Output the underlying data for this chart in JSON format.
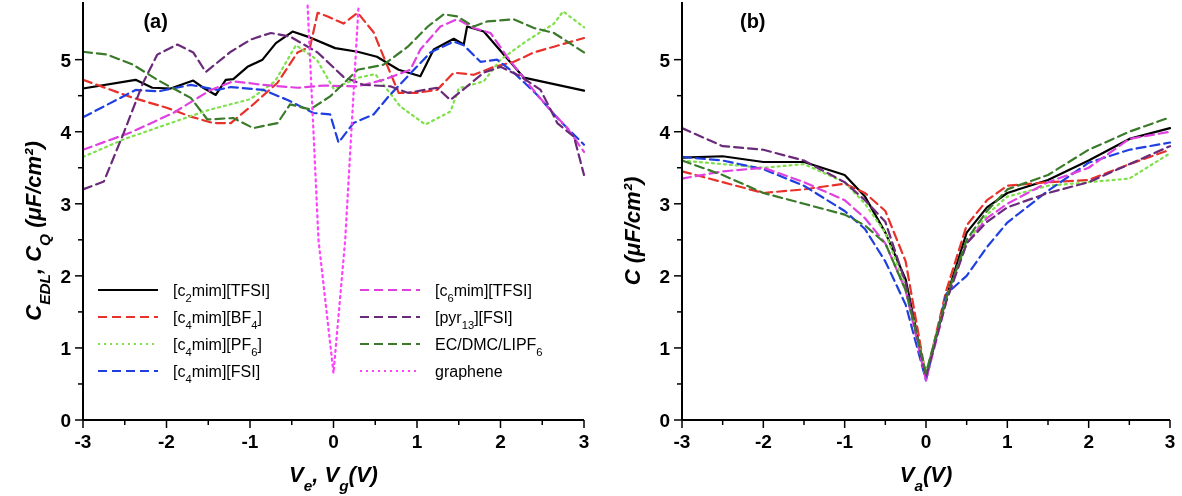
{
  "chart_data": [
    {
      "type": "line",
      "title": "(a)",
      "xlabel": "V$_{e}$, V$_{g}$(V)",
      "ylabel": "C$_{EDL}$, C$_{Q}$ (μF/cm²)",
      "xlim": [
        -3,
        3
      ],
      "ylim": [
        0,
        5.8
      ],
      "xticks": [
        -3,
        {
          "value": -2.5,
          "label": null
        },
        -2,
        {
          "value": -1.5,
          "label": null
        },
        -1,
        {
          "value": -0.5,
          "label": null
        },
        0,
        {
          "value": 0.5,
          "label": null
        },
        1,
        {
          "value": 1.5,
          "label": null
        },
        2,
        {
          "value": 2.5,
          "label": null
        },
        3
      ],
      "yticks": [
        0,
        {
          "value": 0.5,
          "label": null
        },
        1,
        {
          "value": 1.5,
          "label": null
        },
        2,
        {
          "value": 2.5,
          "label": null
        },
        3,
        {
          "value": 3.5,
          "label": null
        },
        4,
        {
          "value": 4.5,
          "label": null
        },
        5
      ],
      "legend": "bottom left",
      "grid": false,
      "series": [
        {
          "name": "[c$_{2}$mim][TFSI]",
          "color": "#000000",
          "line_style": "solid",
          "x": [
            -3,
            -2.37,
            -2.17,
            -1.95,
            -1.68,
            -1.56,
            -1.41,
            -1.29,
            -1.2,
            -1.03,
            -0.85,
            -0.69,
            -0.49,
            -0.31,
            0.02,
            0.29,
            0.52,
            0.78,
            1.04,
            1.2,
            1.44,
            1.56,
            1.6,
            1.8,
            2.28,
            3
          ],
          "values": [
            4.6,
            4.72,
            4.61,
            4.6,
            4.71,
            4.61,
            4.51,
            4.72,
            4.73,
            4.9,
            5.0,
            5.23,
            5.39,
            5.32,
            5.16,
            5.11,
            5.04,
            4.86,
            4.77,
            5.14,
            5.29,
            5.21,
            5.46,
            5.39,
            4.75,
            4.57
          ]
        },
        {
          "name": "[c$_{4}$mim][BF$_{4}$]",
          "color": "#e8312a",
          "line_style": "dashed",
          "x": [
            -3,
            -2.4,
            -1.99,
            -1.71,
            -1.44,
            -1.23,
            -0.99,
            -0.67,
            -0.43,
            -0.28,
            -0.19,
            -0.07,
            0.12,
            0.29,
            0.48,
            0.65,
            0.78,
            1.0,
            1.24,
            1.44,
            1.68,
            1.92,
            2.16,
            2.4,
            2.64,
            3
          ],
          "values": [
            4.72,
            4.47,
            4.33,
            4.21,
            4.12,
            4.12,
            4.35,
            4.68,
            5.1,
            5.18,
            5.65,
            5.6,
            5.5,
            5.65,
            5.38,
            4.9,
            4.54,
            4.54,
            4.58,
            4.82,
            4.79,
            4.9,
            4.97,
            5.1,
            5.18,
            5.3
          ]
        },
        {
          "name": "[c$_{4}$mim][PF$_{6}$]",
          "color": "#7fe04a",
          "line_style": "dotted",
          "x": [
            -3,
            -2.5,
            -2,
            -1.5,
            -1,
            -0.7,
            -0.45,
            -0.2,
            0,
            0.3,
            0.5,
            0.8,
            1.1,
            1.4,
            1.5,
            1.8,
            2.0,
            2.3,
            2.64,
            2.75,
            3
          ],
          "values": [
            3.65,
            3.9,
            4.1,
            4.3,
            4.45,
            4.7,
            5.2,
            5.0,
            4.6,
            4.75,
            4.8,
            4.35,
            4.1,
            4.28,
            4.6,
            4.7,
            5.0,
            5.25,
            5.5,
            5.67,
            5.45
          ]
        },
        {
          "name": "[c$_{4}$mim][FSI]",
          "color": "#1f3fe0",
          "line_style": "dashed",
          "x": [
            -3,
            -2.37,
            -2.1,
            -1.71,
            -1.39,
            -1.23,
            -0.84,
            -0.55,
            -0.24,
            -0.04,
            0.06,
            0.24,
            0.48,
            0.66,
            0.89,
            1.16,
            1.44,
            1.56,
            1.76,
            1.96,
            2.16,
            2.44,
            2.68,
            3
          ],
          "values": [
            4.2,
            4.58,
            4.56,
            4.65,
            4.58,
            4.62,
            4.58,
            4.44,
            4.26,
            4.24,
            3.85,
            4.12,
            4.24,
            4.49,
            4.77,
            5.1,
            5.25,
            5.2,
            4.97,
            5.0,
            4.82,
            4.51,
            4.19,
            3.82
          ]
        },
        {
          "name": "[c$_{6}$mim][TFSI]",
          "color": "#e040e0",
          "line_style": "dashed",
          "x": [
            -3,
            -2.43,
            -1.92,
            -1.47,
            -1.2,
            -0.84,
            -0.43,
            -0.12,
            0.29,
            0.6,
            0.92,
            1.04,
            1.28,
            1.48,
            1.68,
            1.88,
            2.08,
            2.32,
            2.56,
            2.8,
            3
          ],
          "values": [
            3.75,
            3.99,
            4.26,
            4.58,
            4.7,
            4.65,
            4.61,
            4.64,
            4.63,
            4.72,
            4.86,
            5.14,
            5.46,
            5.56,
            5.44,
            5.37,
            5.04,
            4.68,
            4.35,
            4.05,
            3.72
          ]
        },
        {
          "name": "[pyr$_{13}$][FSI]",
          "color": "#6a2a7a",
          "line_style": "dashed",
          "x": [
            -3,
            -2.75,
            -2.51,
            -2.28,
            -2.11,
            -1.87,
            -1.68,
            -1.53,
            -1.23,
            -0.99,
            -0.75,
            -0.52,
            -0.19,
            0.12,
            0.36,
            0.68,
            0.89,
            1.24,
            1.4,
            1.6,
            1.8,
            2.0,
            2.24,
            2.48,
            2.68,
            2.88,
            3
          ],
          "values": [
            3.2,
            3.31,
            3.99,
            4.68,
            5.07,
            5.21,
            5.1,
            4.83,
            5.11,
            5.28,
            5.37,
            5.32,
            5.1,
            4.76,
            4.65,
            4.63,
            4.54,
            4.61,
            4.44,
            4.63,
            4.82,
            4.9,
            4.77,
            4.58,
            4.12,
            3.93,
            3.4
          ]
        },
        {
          "name": "EC/DMC/LIPF$_{6}$",
          "color": "#3a7a2a",
          "line_style": "dashed",
          "x": [
            -3,
            -2.71,
            -2.4,
            -2.11,
            -1.71,
            -1.51,
            -1.2,
            -0.96,
            -0.67,
            -0.52,
            -0.28,
            -0.04,
            0.29,
            0.6,
            0.89,
            1.13,
            1.32,
            1.48,
            1.68,
            1.84,
            2.16,
            2.4,
            2.64,
            3
          ],
          "values": [
            5.11,
            5.07,
            4.93,
            4.72,
            4.47,
            4.17,
            4.19,
            4.05,
            4.12,
            4.38,
            4.31,
            4.49,
            4.86,
            4.93,
            5.18,
            5.46,
            5.63,
            5.6,
            5.46,
            5.53,
            5.56,
            5.44,
            5.37,
            5.1
          ]
        },
        {
          "name": "graphene",
          "color": "#ff40ff",
          "line_style": "dotted",
          "x": [
            -0.31,
            -0.18,
            0,
            0.14,
            0.3
          ],
          "values": [
            5.75,
            2.5,
            0.65,
            2.5,
            5.75
          ]
        }
      ]
    },
    {
      "type": "line",
      "title": "(b)",
      "xlabel": "V$_{a}$(V)",
      "ylabel": "C (μF/cm²)",
      "xlim": [
        -3,
        3
      ],
      "ylim": [
        0,
        5.8
      ],
      "xticks": [
        -3,
        {
          "value": -2.5,
          "label": null
        },
        -2,
        {
          "value": -1.5,
          "label": null
        },
        -1,
        {
          "value": -0.5,
          "label": null
        },
        0,
        {
          "value": 0.5,
          "label": null
        },
        1,
        {
          "value": 1.5,
          "label": null
        },
        2,
        {
          "value": 2.5,
          "label": null
        },
        3
      ],
      "yticks": [
        0,
        {
          "value": 0.5,
          "label": null
        },
        1,
        {
          "value": 1.5,
          "label": null
        },
        2,
        {
          "value": 2.5,
          "label": null
        },
        3,
        {
          "value": 3.5,
          "label": null
        },
        4,
        {
          "value": 4.5,
          "label": null
        },
        5
      ],
      "grid": false,
      "x": [
        -3,
        -2.5,
        -2,
        -1.5,
        -1,
        -0.75,
        -0.5,
        -0.25,
        0,
        0.25,
        0.5,
        0.75,
        1,
        1.5,
        2,
        2.5,
        3
      ],
      "series": [
        {
          "color": "#000000",
          "line_style": "solid",
          "values": [
            3.64,
            3.66,
            3.58,
            3.58,
            3.4,
            3.1,
            2.6,
            1.95,
            0.6,
            1.7,
            2.6,
            2.95,
            3.15,
            3.33,
            3.6,
            3.9,
            4.05
          ]
        },
        {
          "color": "#e8312a",
          "line_style": "dashed",
          "values": [
            3.45,
            3.3,
            3.15,
            3.2,
            3.28,
            3.15,
            2.9,
            2.2,
            0.6,
            1.8,
            2.7,
            3.05,
            3.25,
            3.3,
            3.33,
            3.55,
            3.75
          ]
        },
        {
          "color": "#7fe04a",
          "line_style": "dotted",
          "values": [
            3.6,
            3.55,
            3.5,
            3.55,
            3.3,
            3.0,
            2.6,
            1.85,
            0.65,
            1.7,
            2.45,
            2.85,
            3.1,
            3.25,
            3.3,
            3.35,
            3.7
          ]
        },
        {
          "color": "#1f3fe0",
          "line_style": "dashed",
          "values": [
            3.65,
            3.6,
            3.48,
            3.25,
            2.9,
            2.65,
            2.2,
            1.6,
            0.55,
            1.75,
            2.0,
            2.4,
            2.74,
            3.18,
            3.57,
            3.75,
            3.85
          ]
        },
        {
          "color": "#e040e0",
          "line_style": "dashed",
          "values": [
            3.35,
            3.45,
            3.5,
            3.3,
            3.05,
            2.8,
            2.45,
            1.8,
            0.55,
            1.65,
            2.45,
            2.8,
            3.0,
            3.3,
            3.5,
            3.9,
            4.0
          ]
        },
        {
          "color": "#6a2a7a",
          "line_style": "dashed",
          "values": [
            4.05,
            3.8,
            3.75,
            3.6,
            3.3,
            3.05,
            2.75,
            1.9,
            0.6,
            1.65,
            2.45,
            2.75,
            2.95,
            3.15,
            3.3,
            3.55,
            3.8
          ]
        },
        {
          "color": "#3a7a2a",
          "line_style": "dashed",
          "values": [
            3.6,
            3.4,
            3.15,
            3.0,
            2.85,
            2.7,
            2.45,
            1.8,
            0.65,
            1.7,
            2.5,
            2.9,
            3.2,
            3.4,
            3.75,
            4.0,
            4.2
          ]
        }
      ]
    }
  ]
}
